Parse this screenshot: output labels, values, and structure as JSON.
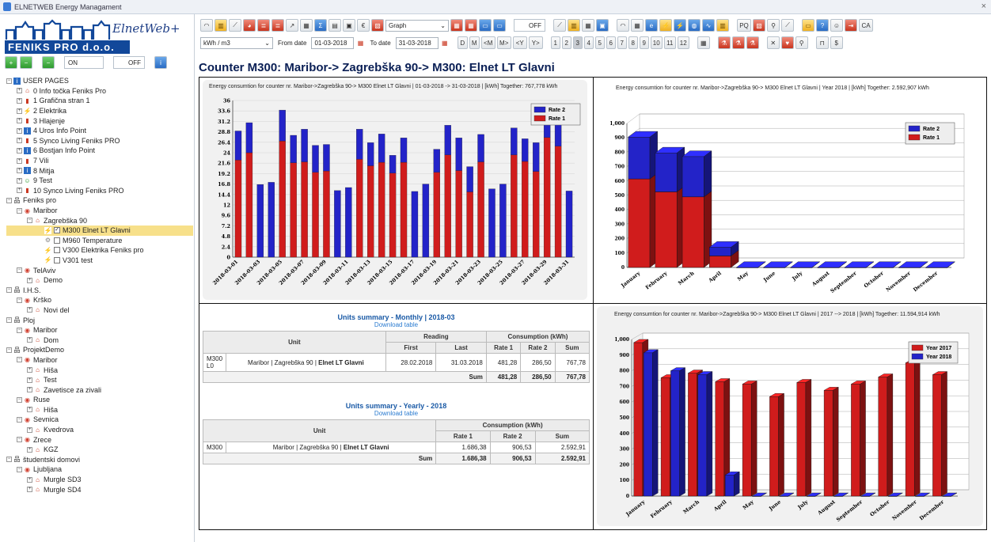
{
  "window": {
    "title": "ELNETWEB Energy Managament",
    "close": "×"
  },
  "logo": {
    "company": "FENIKS PRO d.o.o.",
    "product": "ElnetWeb+"
  },
  "left_toolbar": {
    "on_label": "ON",
    "off_label": "OFF"
  },
  "tree": [
    {
      "d": 0,
      "pm": "-",
      "icon": "info",
      "label": "USER PAGES"
    },
    {
      "d": 1,
      "pm": "+",
      "icon": "home",
      "label": "0 Info točka Feniks Pro"
    },
    {
      "d": 1,
      "pm": "+",
      "icon": "thermo",
      "label": "1 Grafična stran 1"
    },
    {
      "d": 1,
      "pm": "+",
      "icon": "bolt",
      "label": "2 Elektrika"
    },
    {
      "d": 1,
      "pm": "+",
      "icon": "thermo",
      "label": "3 Hlajenje"
    },
    {
      "d": 1,
      "pm": "+",
      "icon": "info",
      "label": "4 Uros Info Point"
    },
    {
      "d": 1,
      "pm": "+",
      "icon": "thermo",
      "label": "5 Synco Living Feniks PRO"
    },
    {
      "d": 1,
      "pm": "+",
      "icon": "info",
      "label": "6 Bostjan Info Point"
    },
    {
      "d": 1,
      "pm": "+",
      "icon": "thermo",
      "label": "7 Vili"
    },
    {
      "d": 1,
      "pm": "+",
      "icon": "info",
      "label": "8 Mitja"
    },
    {
      "d": 1,
      "pm": "+",
      "icon": "smile",
      "label": "9 Test"
    },
    {
      "d": 1,
      "pm": "+",
      "icon": "thermo",
      "label": "10 Synco Living Feniks PRO"
    },
    {
      "d": 0,
      "pm": "-",
      "icon": "net",
      "label": "Feniks pro"
    },
    {
      "d": 1,
      "pm": "-",
      "icon": "pin",
      "label": "Maribor"
    },
    {
      "d": 2,
      "pm": "-",
      "icon": "home",
      "label": "Zagrebška 90"
    },
    {
      "d": 3,
      "pm": "",
      "icon": "bolt",
      "label": "M300 Elnet LT Glavni",
      "cb": "✓",
      "sel": true
    },
    {
      "d": 3,
      "pm": "",
      "icon": "gear",
      "label": "M960 Temperature",
      "cb": ""
    },
    {
      "d": 3,
      "pm": "",
      "icon": "bolt",
      "label": "V300 Elektrika Feniks pro",
      "cb": ""
    },
    {
      "d": 3,
      "pm": "",
      "icon": "bolt",
      "label": "V301 test",
      "cb": ""
    },
    {
      "d": 1,
      "pm": "-",
      "icon": "pin",
      "label": "TelAviv"
    },
    {
      "d": 2,
      "pm": "+",
      "icon": "home",
      "label": "Demo"
    },
    {
      "d": 0,
      "pm": "-",
      "icon": "net",
      "label": "I.H.S."
    },
    {
      "d": 1,
      "pm": "-",
      "icon": "pin",
      "label": "Krško"
    },
    {
      "d": 2,
      "pm": "+",
      "icon": "home",
      "label": "Novi del"
    },
    {
      "d": 0,
      "pm": "-",
      "icon": "net",
      "label": "Ploj"
    },
    {
      "d": 1,
      "pm": "-",
      "icon": "pin",
      "label": "Maribor"
    },
    {
      "d": 2,
      "pm": "+",
      "icon": "home",
      "label": "Dom"
    },
    {
      "d": 0,
      "pm": "-",
      "icon": "net",
      "label": "ProjektDemo"
    },
    {
      "d": 1,
      "pm": "-",
      "icon": "pin",
      "label": "Maribor"
    },
    {
      "d": 2,
      "pm": "+",
      "icon": "home",
      "label": "Hiša"
    },
    {
      "d": 2,
      "pm": "+",
      "icon": "home",
      "label": "Test"
    },
    {
      "d": 2,
      "pm": "+",
      "icon": "home",
      "label": "Zavetisce za zivali"
    },
    {
      "d": 1,
      "pm": "-",
      "icon": "pin",
      "label": "Ruse"
    },
    {
      "d": 2,
      "pm": "+",
      "icon": "home",
      "label": "Hiša"
    },
    {
      "d": 1,
      "pm": "-",
      "icon": "pin",
      "label": "Sevnica"
    },
    {
      "d": 2,
      "pm": "+",
      "icon": "home",
      "label": "Kvedrova"
    },
    {
      "d": 1,
      "pm": "-",
      "icon": "pin",
      "label": "Zrece"
    },
    {
      "d": 2,
      "pm": "+",
      "icon": "home",
      "label": "KGZ"
    },
    {
      "d": 0,
      "pm": "-",
      "icon": "net",
      "label": "študentski domovi"
    },
    {
      "d": 1,
      "pm": "-",
      "icon": "pin",
      "label": "Ljubljana"
    },
    {
      "d": 2,
      "pm": "+",
      "icon": "home",
      "label": "Murgle SD3"
    },
    {
      "d": 2,
      "pm": "+",
      "icon": "home",
      "label": "Murgle SD4"
    }
  ],
  "toolbar": {
    "graph_select": "Graph",
    "off_label": "OFF",
    "pq_label": "PQ",
    "ca_label": "CA"
  },
  "toolbar2": {
    "unit_select": "kWh / m3",
    "from_label": "From date",
    "from_value": "01-03-2018",
    "to_label": "To date",
    "to_value": "31-03-2018",
    "range_buttons": [
      "D",
      "M",
      "<M",
      "M>",
      "<Y",
      "Y>"
    ],
    "month_buttons": [
      "1",
      "2",
      "3",
      "4",
      "5",
      "6",
      "7",
      "8",
      "9",
      "10",
      "11",
      "12"
    ],
    "active_month": "3"
  },
  "heading": "Counter M300: Maribor-> Zagrebška 90-> M300: Elnet LT Glavni",
  "colors": {
    "rate1": "#d01c1c",
    "rate2": "#2323c8",
    "y2017": "#d01c1c",
    "y2018": "#2323c8",
    "title": "#0a1f55"
  },
  "chart_data": [
    {
      "type": "bar",
      "title": "Energy consumtion for counter nr. Maribor->Zagrebška 90-> M300 Elnet LT Glavni | 01-03-2018 -> 31-03-2018 | [kWh] Together: 767,778 kWh",
      "categories": [
        "2018-03-01",
        "2018-03-02",
        "2018-03-03",
        "2018-03-04",
        "2018-03-05",
        "2018-03-06",
        "2018-03-07",
        "2018-03-08",
        "2018-03-09",
        "2018-03-10",
        "2018-03-11",
        "2018-03-12",
        "2018-03-13",
        "2018-03-14",
        "2018-03-15",
        "2018-03-16",
        "2018-03-17",
        "2018-03-18",
        "2018-03-19",
        "2018-03-20",
        "2018-03-21",
        "2018-03-22",
        "2018-03-23",
        "2018-03-24",
        "2018-03-25",
        "2018-03-26",
        "2018-03-27",
        "2018-03-28",
        "2018-03-29",
        "2018-03-30",
        "2018-03-31"
      ],
      "tick_labels": [
        "2018-03-01",
        "2018-03-03",
        "2018-03-05",
        "2018-03-07",
        "2018-03-09",
        "2018-03-11",
        "2018-03-13",
        "2018-03-15",
        "2018-03-17",
        "2018-03-19",
        "2018-03-21",
        "2018-03-23",
        "2018-03-25",
        "2018-03-27",
        "2018-03-29",
        "2018-03-31"
      ],
      "stacked": true,
      "series": [
        {
          "name": "Rate 1",
          "values": [
            22.3,
            24.0,
            0,
            0,
            26.7,
            21.7,
            21.9,
            19.5,
            19.8,
            0,
            0,
            22.5,
            21.0,
            21.8,
            19.3,
            21.8,
            0,
            0,
            19.5,
            23.5,
            19.9,
            15.0,
            21.9,
            0,
            0,
            23.5,
            22.0,
            19.7,
            27.5,
            25.5,
            0
          ]
        },
        {
          "name": "Rate 2",
          "values": [
            6.7,
            6.9,
            16.7,
            17.2,
            7.1,
            6.3,
            7.5,
            6.2,
            6.1,
            15.3,
            16.0,
            6.9,
            5.3,
            6.5,
            4.1,
            5.6,
            15.1,
            16.8,
            5.3,
            6.8,
            7.5,
            5.8,
            6.3,
            15.7,
            16.8,
            6.2,
            5.2,
            6.6,
            6.7,
            8.0,
            15.2
          ]
        }
      ],
      "yticks": [
        "0",
        "2.4",
        "4.8",
        "7.2",
        "9.6",
        "12",
        "14.4",
        "16.8",
        "19.2",
        "21.6",
        "24",
        "26.4",
        "28.8",
        "31.2",
        "33.6",
        "36"
      ],
      "ylim": [
        0,
        36
      ],
      "legend": "top-right"
    },
    {
      "type": "bar",
      "title": "Energy consumtion for counter nr. Maribor->Zagrebška 90-> M300 Elnet LT Glavni | Year 2018 | [kWh] Together: 2.592,907 kWh",
      "categories": [
        "January",
        "February",
        "March",
        "April",
        "May",
        "June",
        "July",
        "August",
        "September",
        "October",
        "November",
        "December"
      ],
      "stacked": true,
      "three_d": true,
      "series": [
        {
          "name": "Rate 1",
          "values": [
            615,
            525,
            490,
            80,
            0,
            0,
            0,
            0,
            0,
            0,
            0,
            0
          ]
        },
        {
          "name": "Rate 2",
          "values": [
            290,
            270,
            280,
            60,
            0,
            0,
            0,
            0,
            0,
            0,
            0,
            0
          ]
        }
      ],
      "yticks": [
        "0",
        "100",
        "200",
        "300",
        "400",
        "500",
        "600",
        "700",
        "800",
        "900",
        "1,000"
      ],
      "ylim": [
        0,
        1000
      ],
      "legend": "top-right"
    },
    {
      "type": "bar",
      "title": "Energy consumtion for counter nr. Maribor->Zagrebška 90-> M300 Elnet LT Glavni | 2017 --> 2018 | [kWh] Together: 11.594,914 kWh",
      "categories": [
        "January",
        "February",
        "March",
        "April",
        "May",
        "June",
        "July",
        "August",
        "September",
        "October",
        "November",
        "December"
      ],
      "three_d": true,
      "series": [
        {
          "name": "Year 2017",
          "values": [
            980,
            755,
            785,
            730,
            715,
            635,
            725,
            675,
            715,
            760,
            850,
            775
          ]
        },
        {
          "name": "Year 2018",
          "values": [
            915,
            800,
            775,
            135,
            0,
            0,
            0,
            0,
            0,
            0,
            0,
            0
          ]
        }
      ],
      "yticks": [
        "0",
        "100",
        "200",
        "300",
        "400",
        "500",
        "600",
        "700",
        "800",
        "900",
        "1,000"
      ],
      "ylim": [
        0,
        1000
      ],
      "legend": "top-right"
    }
  ],
  "monthly": {
    "title": "Units summary - Monthly | 2018-03",
    "download": "Download table",
    "h_unit": "Unit",
    "h_reading": "Reading",
    "h_consumption": "Consumption (kWh)",
    "h_first": "First",
    "h_last": "Last",
    "h_rate1": "Rate 1",
    "h_rate2": "Rate 2",
    "h_sum": "Sum",
    "row": {
      "id": "M300 L0",
      "unit_pre": "Maribor | Zagrebška 90 | ",
      "unit_bold": "Elnet LT Glavni",
      "first": "28.02.2018",
      "last": "31.03.2018",
      "rate1": "481,28",
      "rate2": "286,50",
      "sum": "767,78"
    },
    "total": {
      "label": "Sum",
      "rate1": "481,28",
      "rate2": "286,50",
      "sum": "767,78"
    }
  },
  "yearly": {
    "title": "Units summary - Yearly - 2018",
    "download": "Download table",
    "h_unit": "Unit",
    "h_consumption": "Consumption (kWh)",
    "h_rate1": "Rate 1",
    "h_rate2": "Rate 2",
    "h_sum": "Sum",
    "row": {
      "id": "M300",
      "unit_pre": "Maribor | Zagrebška 90 | ",
      "unit_bold": "Elnet LT Glavni",
      "rate1": "1.686,38",
      "rate2": "906,53",
      "sum": "2.592,91"
    },
    "total": {
      "label": "Sum",
      "rate1": "1.686,38",
      "rate2": "906,53",
      "sum": "2.592,91"
    }
  }
}
